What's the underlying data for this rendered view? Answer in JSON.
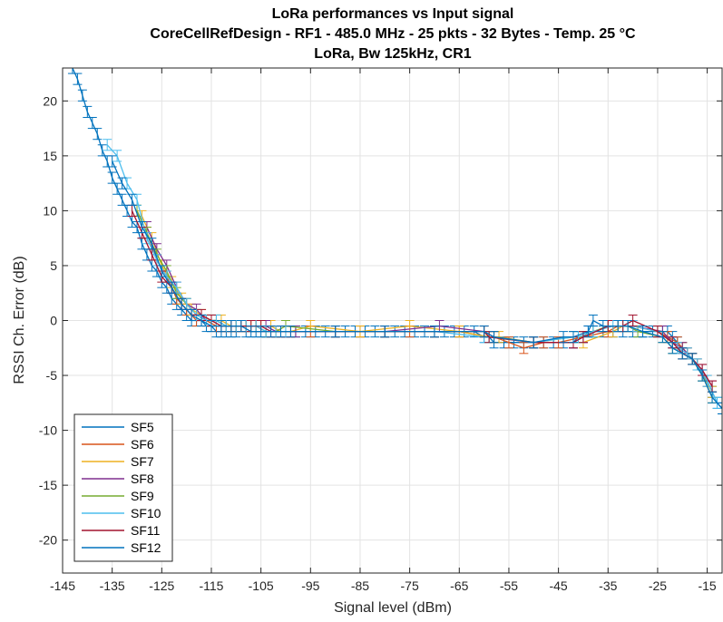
{
  "chart_data": {
    "type": "line",
    "title": [
      "LoRa performances vs Input signal",
      "CoreCellRefDesign - RF1 - 485.0 MHz - 25 pkts - 32 Bytes - Temp. 25 °C",
      "LoRa, Bw 125kHz, CR1"
    ],
    "xlabel": "Signal level (dBm)",
    "ylabel": "RSSI Ch. Error (dB)",
    "xlim": [
      -145,
      -12
    ],
    "ylim": [
      -23,
      23
    ],
    "xticks": [
      -145,
      -135,
      -125,
      -115,
      -105,
      -95,
      -85,
      -75,
      -65,
      -55,
      -45,
      -35,
      -25,
      -15
    ],
    "yticks": [
      20,
      15,
      10,
      5,
      0,
      -5,
      -10,
      -15,
      -20
    ],
    "grid": true,
    "legend_position": "bottom-left",
    "series": [
      {
        "name": "SF5",
        "color": "#0072BD",
        "x": [
          -143,
          -142,
          -141,
          -140,
          -139,
          -138,
          -137,
          -136,
          -135,
          -134,
          -133,
          -132,
          -131,
          -130,
          -129,
          -128,
          -127,
          -126,
          -125,
          -124,
          -123,
          -122,
          -121,
          -120,
          -119,
          -118,
          -117,
          -116,
          -115,
          -114,
          -113,
          -112,
          -111,
          -110,
          -108,
          -106,
          -104,
          -102,
          -100,
          -98,
          -96,
          -94,
          -92,
          -90,
          -88,
          -86,
          -84,
          -82,
          -80,
          -78,
          -76,
          -74,
          -72,
          -70,
          -68,
          -66,
          -64,
          -62,
          -60,
          -59,
          -58,
          -56,
          -54,
          -52,
          -50,
          -48,
          -46,
          -44,
          -42,
          -41,
          -40,
          -39,
          -38,
          -36,
          -34,
          -32,
          -30,
          -28,
          -26,
          -24,
          -23,
          -22,
          -21,
          -20,
          -19,
          -18,
          -17,
          -16,
          -15,
          -14,
          -13,
          -12
        ],
        "y": [
          23,
          22,
          20.5,
          19,
          18,
          17,
          15.5,
          14.5,
          13,
          12,
          11,
          10,
          9,
          8.5,
          7,
          6,
          5,
          4.5,
          3.5,
          3,
          2,
          1.5,
          1,
          0.5,
          0,
          0,
          0,
          -0.5,
          -0.5,
          -1,
          -1,
          -1,
          -1,
          -1,
          -1,
          -1,
          -1,
          -1,
          -1,
          -1,
          -1,
          -1,
          -1,
          -1,
          -1,
          -1,
          -1,
          -1,
          -1,
          -1,
          -1,
          -1,
          -1,
          -1,
          -1,
          -1,
          -1,
          -1,
          -1.5,
          -1.5,
          -2,
          -2,
          -2,
          -2,
          -2,
          -2,
          -2,
          -2,
          -2,
          -1.5,
          -1.5,
          -1,
          -1,
          -1,
          -1,
          -1,
          -1,
          -1,
          -1,
          -1,
          -1,
          -1.5,
          -2,
          -2.5,
          -3,
          -3.5,
          -4,
          -5,
          -5.5,
          -6.5,
          -7.5,
          -8
        ],
        "err": 0.5
      },
      {
        "name": "SF6",
        "color": "#D95319",
        "x": [
          -130,
          -128,
          -126,
          -124,
          -122,
          -120,
          -118,
          -116,
          -114,
          -112,
          -110,
          -108,
          -106,
          -104,
          -102,
          -100,
          -95,
          -85,
          -75,
          -65,
          -59,
          -58,
          -55,
          -52,
          -48,
          -45,
          -40,
          -35,
          -33,
          -30,
          -25,
          -23,
          -21,
          -20,
          -19,
          -17,
          -15
        ],
        "y": [
          10,
          8,
          5.5,
          4,
          2,
          1,
          0,
          0,
          -0.5,
          -0.5,
          -0.5,
          -0.5,
          -0.5,
          -1,
          -1,
          -1,
          -1,
          -1,
          -1,
          -1,
          -1.5,
          -1.5,
          -2,
          -2.5,
          -2,
          -2,
          -1.5,
          -1,
          -0.5,
          -0.5,
          -1,
          -1.5,
          -2,
          -2.5,
          -3,
          -4,
          -5.5
        ],
        "err": 0.5
      },
      {
        "name": "SF7",
        "color": "#EDB120",
        "x": [
          -129,
          -127,
          -125,
          -123,
          -121,
          -119,
          -117,
          -115,
          -113,
          -111,
          -109,
          -107,
          -105,
          -103,
          -101,
          -99,
          -95,
          -85,
          -75,
          -65,
          -59,
          -57,
          -50,
          -40,
          -34,
          -32,
          -30,
          -25,
          -22,
          -20,
          -18,
          -16,
          -14
        ],
        "y": [
          9.5,
          7.5,
          5,
          3.5,
          2,
          1,
          0.5,
          0,
          0,
          -0.5,
          -0.5,
          -0.5,
          -0.5,
          -0.5,
          -1,
          -1,
          -0.5,
          -1,
          -0.5,
          -1,
          -1.5,
          -1.5,
          -2,
          -2,
          -1,
          -0.5,
          -0.5,
          -1,
          -2,
          -2.5,
          -3.5,
          -5,
          -6.5
        ],
        "err": 0.5
      },
      {
        "name": "SF8",
        "color": "#7E2F8E",
        "x": [
          -128,
          -126,
          -124,
          -122,
          -120,
          -118,
          -116,
          -114,
          -112,
          -110,
          -108,
          -106,
          -104,
          -102,
          -100,
          -98,
          -90,
          -80,
          -69,
          -60,
          -58,
          -50,
          -42,
          -40,
          -35,
          -33,
          -30,
          -24,
          -22,
          -20,
          -18,
          -16,
          -14
        ],
        "y": [
          8.5,
          6.5,
          5,
          3,
          1.5,
          1,
          0,
          0,
          -0.5,
          -0.5,
          -0.5,
          -0.5,
          -0.5,
          -1,
          -1,
          -1,
          -1,
          -1,
          -0.5,
          -1,
          -1.5,
          -2,
          -2,
          -1.5,
          -0.5,
          -0.5,
          -0.5,
          -1,
          -2,
          -2.5,
          -3.5,
          -4.5,
          -6
        ],
        "err": 0.5
      },
      {
        "name": "SF9",
        "color": "#77AC30",
        "x": [
          -130,
          -128,
          -126,
          -124,
          -122,
          -120,
          -118,
          -116,
          -114,
          -112,
          -110,
          -108,
          -106,
          -104,
          -102,
          -100,
          -90,
          -80,
          -70,
          -60,
          -59,
          -58,
          -50,
          -42,
          -41,
          -38,
          -35,
          -33,
          -31,
          -29,
          -24,
          -22,
          -20,
          -18,
          -16,
          -14
        ],
        "y": [
          10,
          8,
          6,
          4.5,
          2.5,
          1.5,
          0.5,
          0,
          0,
          -0.5,
          -0.5,
          -0.5,
          -0.5,
          -1,
          -1,
          -0.5,
          -1,
          -1,
          -1,
          -1,
          -1.5,
          -1.5,
          -2,
          -1.5,
          -1.5,
          -1,
          -0.5,
          -0.5,
          -0.5,
          -1,
          -1.5,
          -2.5,
          -3,
          -3.5,
          -5,
          -7
        ],
        "err": 0.5
      },
      {
        "name": "SF10",
        "color": "#4DBEEE",
        "x": [
          -136,
          -134,
          -132,
          -130,
          -128,
          -126,
          -124,
          -122,
          -120,
          -118,
          -116,
          -114,
          -112,
          -110,
          -108,
          -106,
          -104,
          -102,
          -100,
          -90,
          -80,
          -70,
          -60,
          -59,
          -50,
          -42,
          -41,
          -38,
          -34,
          -32,
          -30,
          -25,
          -22,
          -21,
          -19,
          -17,
          -15,
          -13
        ],
        "y": [
          16,
          15,
          12.5,
          11,
          7.5,
          5.5,
          4,
          3,
          1.5,
          0.5,
          0,
          0,
          -0.5,
          -0.5,
          -0.5,
          -0.5,
          -1,
          -1,
          -1,
          -1,
          -1,
          -1,
          -1.5,
          -1.5,
          -2,
          -1.5,
          -1.5,
          -1,
          -0.5,
          -0.5,
          -0.5,
          -1,
          -2,
          -2.5,
          -3,
          -4,
          -5.5,
          -7.5
        ],
        "err": 0.5
      },
      {
        "name": "SF11",
        "color": "#A2142F",
        "x": [
          -131,
          -129,
          -127,
          -125,
          -123,
          -121,
          -119,
          -117,
          -115,
          -113,
          -111,
          -109,
          -107,
          -105,
          -103,
          -101,
          -99,
          -90,
          -80,
          -70,
          -60,
          -59,
          -50,
          -42,
          -40,
          -35,
          -32,
          -30,
          -25,
          -22,
          -20,
          -18,
          -16,
          -14
        ],
        "y": [
          10,
          8,
          6,
          4,
          3,
          1.5,
          0.5,
          0.5,
          0,
          -0.5,
          -0.5,
          -0.5,
          -0.5,
          -0.5,
          -1,
          -1,
          -1,
          -1,
          -1,
          -1,
          -1,
          -1.5,
          -2,
          -2,
          -1.5,
          -0.5,
          -0.5,
          0,
          -1,
          -2,
          -3,
          -3.5,
          -4.5,
          -6
        ],
        "err": 0.5
      },
      {
        "name": "SF12",
        "color": "#0072BD",
        "x": [
          -135,
          -133,
          -131,
          -129,
          -127,
          -125,
          -123,
          -121,
          -119,
          -117,
          -115,
          -113,
          -111,
          -109,
          -107,
          -105,
          -103,
          -101,
          -99,
          -90,
          -80,
          -70,
          -60,
          -58,
          -50,
          -44,
          -42,
          -39,
          -38,
          -36,
          -33,
          -31,
          -28,
          -24,
          -22,
          -20,
          -18,
          -16,
          -14,
          -12
        ],
        "y": [
          14.5,
          12.5,
          11,
          8.5,
          7,
          4.5,
          3,
          1.5,
          0.5,
          0,
          -0.5,
          -0.5,
          -0.5,
          -0.5,
          -1,
          -1,
          -1,
          -1,
          -1,
          -1,
          -1,
          -1,
          -1,
          -1.5,
          -2,
          -1.5,
          -1.5,
          -1,
          0,
          -0.5,
          -0.5,
          -0.5,
          -1,
          -1.5,
          -2.5,
          -3,
          -3.5,
          -5,
          -7,
          -8
        ],
        "err": 0.5
      }
    ]
  }
}
